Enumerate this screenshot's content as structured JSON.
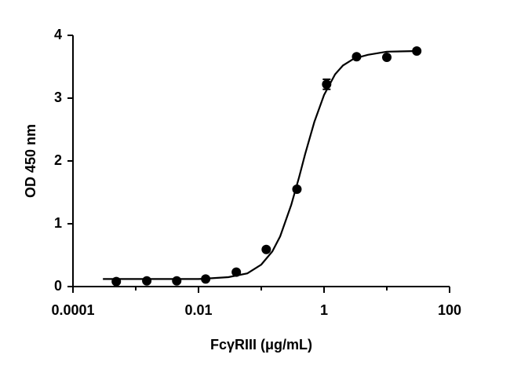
{
  "chart_data": {
    "type": "scatter",
    "x_label": "FcγRIII (μg/mL)",
    "y_label": "OD 450 nm",
    "xscale": "log",
    "xlim": [
      0.0001,
      100
    ],
    "xticks": [
      0.0001,
      0.01,
      1,
      100
    ],
    "xminorticks": [
      0.001,
      0.1,
      10
    ],
    "ylim": [
      0,
      4
    ],
    "yticks": [
      0,
      1,
      2,
      3,
      4
    ],
    "grid": false,
    "series": [
      {
        "type": "scatter",
        "color": "#000000",
        "x": [
          0.00049,
          0.0015,
          0.0045,
          0.013,
          0.04,
          0.12,
          0.37,
          1.1,
          3.3,
          10,
          30
        ],
        "values": [
          0.08,
          0.09,
          0.09,
          0.12,
          0.23,
          0.59,
          1.55,
          3.22,
          3.66,
          3.65,
          3.75
        ],
        "errors": [
          null,
          null,
          null,
          null,
          null,
          null,
          null,
          0.08,
          null,
          null,
          null
        ]
      },
      {
        "type": "line",
        "color": "#000000",
        "x": [
          0.0003,
          0.003,
          0.01,
          0.03,
          0.06,
          0.1,
          0.15,
          0.2,
          0.3,
          0.4,
          0.5,
          0.7,
          1,
          1.5,
          2,
          3,
          5,
          10,
          30
        ],
        "values": [
          0.12,
          0.12,
          0.12,
          0.15,
          0.21,
          0.35,
          0.56,
          0.8,
          1.3,
          1.74,
          2.11,
          2.62,
          3.05,
          3.38,
          3.52,
          3.63,
          3.69,
          3.74,
          3.75
        ]
      }
    ]
  }
}
